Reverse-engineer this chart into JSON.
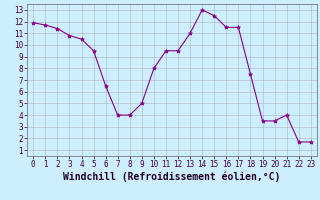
{
  "x": [
    0,
    1,
    2,
    3,
    4,
    5,
    6,
    7,
    8,
    9,
    10,
    11,
    12,
    13,
    14,
    15,
    16,
    17,
    18,
    19,
    20,
    21,
    22,
    23
  ],
  "y": [
    11.9,
    11.7,
    11.4,
    10.8,
    10.5,
    9.5,
    6.5,
    4.0,
    4.0,
    5.0,
    8.0,
    9.5,
    9.5,
    11.0,
    13.0,
    12.5,
    11.5,
    11.5,
    7.5,
    3.5,
    3.5,
    4.0,
    1.7,
    1.7
  ],
  "line_color": "#880088",
  "marker": "*",
  "markersize": 3,
  "xlabel": "Windchill (Refroidissement éolien,°C)",
  "xlabel_fontsize": 7,
  "ylim": [
    0.5,
    13.5
  ],
  "xlim": [
    -0.5,
    23.5
  ],
  "yticks": [
    1,
    2,
    3,
    4,
    5,
    6,
    7,
    8,
    9,
    10,
    11,
    12,
    13
  ],
  "xticks": [
    0,
    1,
    2,
    3,
    4,
    5,
    6,
    7,
    8,
    9,
    10,
    11,
    12,
    13,
    14,
    15,
    16,
    17,
    18,
    19,
    20,
    21,
    22,
    23
  ],
  "background_color": "#cceeff",
  "grid_color": "#aaaaaa",
  "tick_fontsize": 5.5,
  "border_color": "#666666"
}
